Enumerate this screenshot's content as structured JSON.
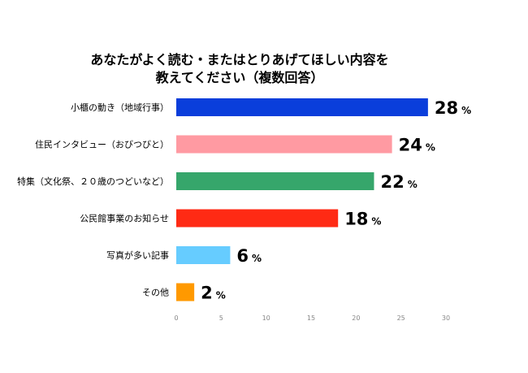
{
  "chart_data": {
    "type": "bar",
    "orientation": "horizontal",
    "title_line1": "あなたがよく読む・またはとりあげてほしい内容を",
    "title_line2": "教えてください（複数回答）",
    "categories": [
      "小櫃の動き（地域行事）",
      "住民インタビュー（おびつびと）",
      "特集（文化祭、２０歳のつどいなど）",
      "公民館事業のお知らせ",
      "写真が多い記事",
      "その他"
    ],
    "values": [
      28,
      24,
      22,
      18,
      6,
      2
    ],
    "value_unit": "%",
    "bar_colors": [
      "#0A3EDB",
      "#FF9AA2",
      "#36A66B",
      "#FF2A14",
      "#66CCFF",
      "#FF9900"
    ],
    "xlim": [
      0,
      30
    ],
    "xticks": [
      0,
      5,
      10,
      15,
      20,
      25,
      30
    ],
    "grid": false,
    "legend": "none"
  }
}
